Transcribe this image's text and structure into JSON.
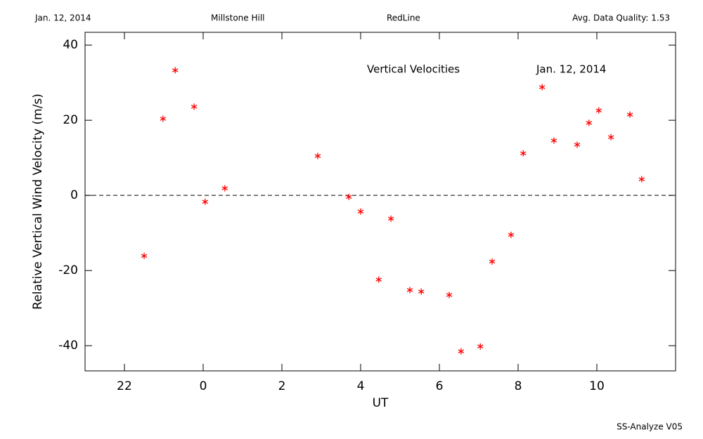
{
  "header": [
    "Jan. 12, 2014",
    "Millstone Hill",
    "RedLine",
    "Avg. Data Quality: 1.53"
  ],
  "footer": "SS-Analyze V05",
  "chart_data": {
    "type": "scatter",
    "xlabel": "UT",
    "ylabel": "Relative Vertical Wind Velocity (m/s)",
    "annotations": [
      "Vertical Velocities",
      "Jan. 12, 2014"
    ],
    "xlim": [
      -3,
      12
    ],
    "ylim": [
      -46.7,
      43.4
    ],
    "xticks": [
      {
        "value": -2,
        "label": "22"
      },
      0,
      2,
      4,
      6,
      8,
      10
    ],
    "yticks": [
      -40,
      -20,
      0,
      20,
      40
    ],
    "reference_line": 0,
    "series": [
      {
        "color": "#ff0000",
        "x": [
          -1.5,
          -1.02,
          -0.71,
          -0.23,
          0.05,
          0.55,
          2.91,
          3.7,
          4.0,
          4.46,
          4.77,
          5.25,
          5.54,
          6.25,
          6.55,
          7.04,
          7.34,
          7.82,
          8.13,
          8.61,
          8.91,
          9.5,
          9.8,
          10.05,
          10.36,
          10.84,
          11.14
        ],
        "values": [
          -16.1,
          20.4,
          33.3,
          23.6,
          -1.7,
          1.9,
          10.5,
          -0.4,
          -4.3,
          -22.4,
          -6.2,
          -25.2,
          -25.6,
          -26.5,
          -41.5,
          -40.2,
          -17.6,
          -10.5,
          11.2,
          28.8,
          14.6,
          13.5,
          19.3,
          22.6,
          15.5,
          21.5,
          4.3
        ]
      }
    ]
  }
}
